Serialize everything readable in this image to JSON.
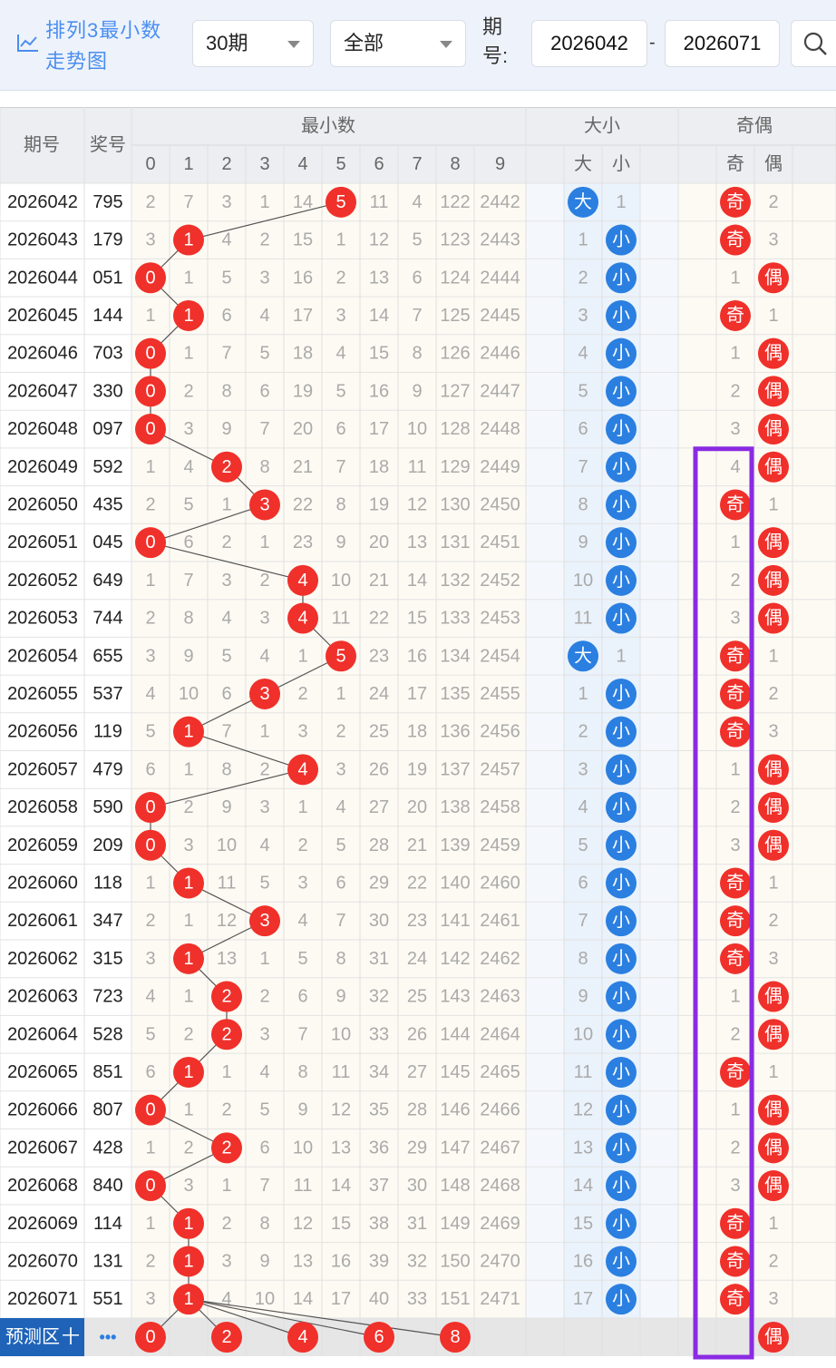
{
  "toolbar": {
    "title_line1": "排列3最小数",
    "title_line2": "走势图",
    "period_select": "30期",
    "type_select": "全部",
    "qihao_label": "期号:",
    "start_issue": "2026042",
    "end_issue": "2026071",
    "dash": "-"
  },
  "table": {
    "header_issue": "期号",
    "header_number": "奖号",
    "group_min": "最小数",
    "group_size": "大小",
    "group_parity": "奇偶",
    "digit_headers": [
      "0",
      "1",
      "2",
      "3",
      "4",
      "5",
      "6",
      "7",
      "8",
      "9"
    ],
    "size_headers": [
      "大",
      "小"
    ],
    "parity_headers": [
      "奇",
      "偶"
    ],
    "big_label": "大",
    "small_label": "小",
    "odd_label": "奇",
    "even_label": "偶",
    "rows": [
      {
        "issue": "2026042",
        "num": "795",
        "min": 5,
        "digits": [
          2,
          7,
          3,
          1,
          14,
          0,
          11,
          4,
          122,
          2442
        ],
        "size": "大",
        "size_miss": 1,
        "parity": "奇",
        "parity_miss": 2
      },
      {
        "issue": "2026043",
        "num": "179",
        "min": 1,
        "digits": [
          3,
          0,
          4,
          2,
          15,
          1,
          12,
          5,
          123,
          2443
        ],
        "size": "小",
        "size_miss": 1,
        "parity": "奇",
        "parity_miss": 3
      },
      {
        "issue": "2026044",
        "num": "051",
        "min": 0,
        "digits": [
          0,
          1,
          5,
          3,
          16,
          2,
          13,
          6,
          124,
          2444
        ],
        "size": "小",
        "size_miss": 2,
        "parity": "偶",
        "parity_miss": 1
      },
      {
        "issue": "2026045",
        "num": "144",
        "min": 1,
        "digits": [
          1,
          0,
          6,
          4,
          17,
          3,
          14,
          7,
          125,
          2445
        ],
        "size": "小",
        "size_miss": 3,
        "parity": "奇",
        "parity_miss": 1
      },
      {
        "issue": "2026046",
        "num": "703",
        "min": 0,
        "digits": [
          0,
          1,
          7,
          5,
          18,
          4,
          15,
          8,
          126,
          2446
        ],
        "size": "小",
        "size_miss": 4,
        "parity": "偶",
        "parity_miss": 1
      },
      {
        "issue": "2026047",
        "num": "330",
        "min": 0,
        "digits": [
          0,
          2,
          8,
          6,
          19,
          5,
          16,
          9,
          127,
          2447
        ],
        "size": "小",
        "size_miss": 5,
        "parity": "偶",
        "parity_miss": 2
      },
      {
        "issue": "2026048",
        "num": "097",
        "min": 0,
        "digits": [
          0,
          3,
          9,
          7,
          20,
          6,
          17,
          10,
          128,
          2448
        ],
        "size": "小",
        "size_miss": 6,
        "parity": "偶",
        "parity_miss": 3
      },
      {
        "issue": "2026049",
        "num": "592",
        "min": 2,
        "digits": [
          1,
          4,
          0,
          8,
          21,
          7,
          18,
          11,
          129,
          2449
        ],
        "size": "小",
        "size_miss": 7,
        "parity": "偶",
        "parity_miss": 4
      },
      {
        "issue": "2026050",
        "num": "435",
        "min": 3,
        "digits": [
          2,
          5,
          1,
          0,
          22,
          8,
          19,
          12,
          130,
          2450
        ],
        "size": "小",
        "size_miss": 8,
        "parity": "奇",
        "parity_miss": 1
      },
      {
        "issue": "2026051",
        "num": "045",
        "min": 0,
        "digits": [
          0,
          6,
          2,
          1,
          23,
          9,
          20,
          13,
          131,
          2451
        ],
        "size": "小",
        "size_miss": 9,
        "parity": "偶",
        "parity_miss": 1
      },
      {
        "issue": "2026052",
        "num": "649",
        "min": 4,
        "digits": [
          1,
          7,
          3,
          2,
          0,
          10,
          21,
          14,
          132,
          2452
        ],
        "size": "小",
        "size_miss": 10,
        "parity": "偶",
        "parity_miss": 2
      },
      {
        "issue": "2026053",
        "num": "744",
        "min": 4,
        "digits": [
          2,
          8,
          4,
          3,
          0,
          11,
          22,
          15,
          133,
          2453
        ],
        "size": "小",
        "size_miss": 11,
        "parity": "偶",
        "parity_miss": 3
      },
      {
        "issue": "2026054",
        "num": "655",
        "min": 5,
        "digits": [
          3,
          9,
          5,
          4,
          1,
          0,
          23,
          16,
          134,
          2454
        ],
        "size": "大",
        "size_miss": 1,
        "parity": "奇",
        "parity_miss": 1
      },
      {
        "issue": "2026055",
        "num": "537",
        "min": 3,
        "digits": [
          4,
          10,
          6,
          0,
          2,
          1,
          24,
          17,
          135,
          2455
        ],
        "size": "小",
        "size_miss": 1,
        "parity": "奇",
        "parity_miss": 2
      },
      {
        "issue": "2026056",
        "num": "119",
        "min": 1,
        "digits": [
          5,
          0,
          7,
          1,
          3,
          2,
          25,
          18,
          136,
          2456
        ],
        "size": "小",
        "size_miss": 2,
        "parity": "奇",
        "parity_miss": 3
      },
      {
        "issue": "2026057",
        "num": "479",
        "min": 4,
        "digits": [
          6,
          1,
          8,
          2,
          0,
          3,
          26,
          19,
          137,
          2457
        ],
        "size": "小",
        "size_miss": 3,
        "parity": "偶",
        "parity_miss": 1
      },
      {
        "issue": "2026058",
        "num": "590",
        "min": 0,
        "digits": [
          0,
          2,
          9,
          3,
          1,
          4,
          27,
          20,
          138,
          2458
        ],
        "size": "小",
        "size_miss": 4,
        "parity": "偶",
        "parity_miss": 2
      },
      {
        "issue": "2026059",
        "num": "209",
        "min": 0,
        "digits": [
          0,
          3,
          10,
          4,
          2,
          5,
          28,
          21,
          139,
          2459
        ],
        "size": "小",
        "size_miss": 5,
        "parity": "偶",
        "parity_miss": 3
      },
      {
        "issue": "2026060",
        "num": "118",
        "min": 1,
        "digits": [
          1,
          0,
          11,
          5,
          3,
          6,
          29,
          22,
          140,
          2460
        ],
        "size": "小",
        "size_miss": 6,
        "parity": "奇",
        "parity_miss": 1
      },
      {
        "issue": "2026061",
        "num": "347",
        "min": 3,
        "digits": [
          2,
          1,
          12,
          0,
          4,
          7,
          30,
          23,
          141,
          2461
        ],
        "size": "小",
        "size_miss": 7,
        "parity": "奇",
        "parity_miss": 2
      },
      {
        "issue": "2026062",
        "num": "315",
        "min": 1,
        "digits": [
          3,
          0,
          13,
          1,
          5,
          8,
          31,
          24,
          142,
          2462
        ],
        "size": "小",
        "size_miss": 8,
        "parity": "奇",
        "parity_miss": 3
      },
      {
        "issue": "2026063",
        "num": "723",
        "min": 2,
        "digits": [
          4,
          1,
          0,
          2,
          6,
          9,
          32,
          25,
          143,
          2463
        ],
        "size": "小",
        "size_miss": 9,
        "parity": "偶",
        "parity_miss": 1
      },
      {
        "issue": "2026064",
        "num": "528",
        "min": 2,
        "digits": [
          5,
          2,
          0,
          3,
          7,
          10,
          33,
          26,
          144,
          2464
        ],
        "size": "小",
        "size_miss": 10,
        "parity": "偶",
        "parity_miss": 2
      },
      {
        "issue": "2026065",
        "num": "851",
        "min": 1,
        "digits": [
          6,
          0,
          1,
          4,
          8,
          11,
          34,
          27,
          145,
          2465
        ],
        "size": "小",
        "size_miss": 11,
        "parity": "奇",
        "parity_miss": 1
      },
      {
        "issue": "2026066",
        "num": "807",
        "min": 0,
        "digits": [
          0,
          1,
          2,
          5,
          9,
          12,
          35,
          28,
          146,
          2466
        ],
        "size": "小",
        "size_miss": 12,
        "parity": "偶",
        "parity_miss": 1
      },
      {
        "issue": "2026067",
        "num": "428",
        "min": 2,
        "digits": [
          1,
          2,
          0,
          6,
          10,
          13,
          36,
          29,
          147,
          2467
        ],
        "size": "小",
        "size_miss": 13,
        "parity": "偶",
        "parity_miss": 2
      },
      {
        "issue": "2026068",
        "num": "840",
        "min": 0,
        "digits": [
          0,
          3,
          1,
          7,
          11,
          14,
          37,
          30,
          148,
          2468
        ],
        "size": "小",
        "size_miss": 14,
        "parity": "偶",
        "parity_miss": 3
      },
      {
        "issue": "2026069",
        "num": "114",
        "min": 1,
        "digits": [
          1,
          0,
          2,
          8,
          12,
          15,
          38,
          31,
          149,
          2469
        ],
        "size": "小",
        "size_miss": 15,
        "parity": "奇",
        "parity_miss": 1
      },
      {
        "issue": "2026070",
        "num": "131",
        "min": 1,
        "digits": [
          2,
          0,
          3,
          9,
          13,
          16,
          39,
          32,
          150,
          2470
        ],
        "size": "小",
        "size_miss": 16,
        "parity": "奇",
        "parity_miss": 2
      },
      {
        "issue": "2026071",
        "num": "551",
        "min": 1,
        "digits": [
          3,
          0,
          4,
          10,
          14,
          17,
          40,
          33,
          151,
          2471
        ],
        "size": "小",
        "size_miss": 17,
        "parity": "奇",
        "parity_miss": 3
      }
    ],
    "predict": {
      "label": "预测区",
      "plus": "十",
      "more": "•••",
      "balls": [
        "0",
        "2",
        "4",
        "6",
        "8"
      ],
      "parity": "偶"
    }
  },
  "colors": {
    "ball_red": "#f0302a",
    "ball_blue": "#2a7fe0",
    "highlight_box": "#8a2be2",
    "predict_label_bg": "#1f63b8",
    "accent_title": "#4a8ef0"
  }
}
